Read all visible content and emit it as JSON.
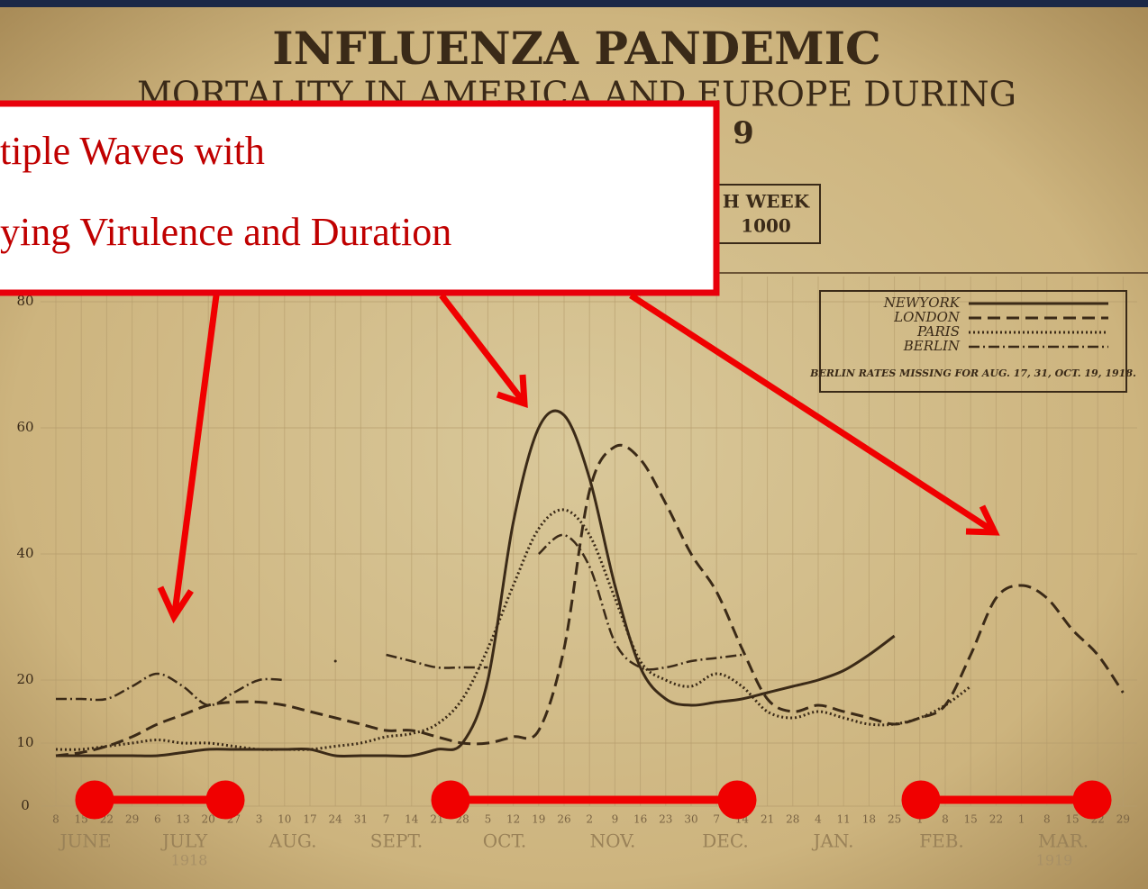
{
  "chart_data": {
    "type": "line",
    "title": "INFLUENZA   PANDEMIC",
    "subtitle": "MORTALITY IN AMERICA AND EUROPE DURING",
    "title_fragment": "9",
    "box_text": [
      "H WEEK",
      "1000"
    ],
    "categories": [
      "8",
      "15",
      "22",
      "29",
      "6",
      "13",
      "20",
      "27",
      "3",
      "10",
      "17",
      "24",
      "31",
      "7",
      "14",
      "21",
      "28",
      "5",
      "12",
      "19",
      "26",
      "2",
      "9",
      "16",
      "23",
      "30",
      "7",
      "14",
      "21",
      "28",
      "4",
      "11",
      "18",
      "25",
      "1",
      "8",
      "15",
      "22",
      "1",
      "8",
      "15",
      "22",
      "29"
    ],
    "month_labels": [
      "JUNE",
      "JULY",
      "AUG.",
      "SEPT.",
      "OCT.",
      "NOV.",
      "DEC.",
      "JAN.",
      "FEB.",
      "MAR."
    ],
    "year_labels": [
      "1918",
      "1919"
    ],
    "ylim": [
      0,
      84
    ],
    "yticks": [
      0,
      10,
      20,
      40,
      60,
      80
    ],
    "grid": true,
    "legend": "upper right",
    "legend_note": "BERLIN RATES MISSING FOR AUG. 17, 31, OCT. 19, 1918.",
    "series": [
      {
        "name": "NEWYORK",
        "color": "#3b2a17",
        "style": "solid",
        "values": [
          8,
          8,
          8,
          8,
          8,
          8.5,
          9,
          9,
          9,
          9,
          9,
          8,
          8,
          8,
          8,
          9,
          10,
          20,
          45,
          60,
          62,
          52,
          35,
          22,
          17,
          16,
          16.5,
          17,
          18,
          19,
          20,
          21.5,
          24,
          27,
          null,
          null,
          null,
          null,
          null,
          null,
          null,
          null,
          null
        ]
      },
      {
        "name": "LONDON",
        "color": "#3b2a17",
        "style": "dashed",
        "values": [
          8,
          8.5,
          9.5,
          11,
          13,
          14.5,
          16,
          16.5,
          16.5,
          16,
          15,
          14,
          13,
          12,
          12,
          11,
          10,
          10,
          11,
          12,
          25,
          50,
          57,
          55,
          48,
          40,
          34,
          25,
          17,
          15,
          16,
          15,
          14,
          13,
          14,
          16,
          24,
          33,
          35,
          33,
          28,
          24,
          18
        ]
      },
      {
        "name": "PARIS",
        "color": "#3b2a17",
        "style": "dotted",
        "values": [
          9,
          9,
          9.5,
          10,
          10.5,
          10,
          10,
          9.5,
          9,
          9,
          9,
          9.5,
          10,
          11,
          11.5,
          13,
          17,
          25,
          35,
          44,
          47,
          43,
          33,
          23,
          20,
          19,
          21,
          19,
          15,
          14,
          15,
          14,
          13,
          13,
          14,
          16,
          19,
          null,
          null,
          null,
          null,
          null,
          null
        ]
      },
      {
        "name": "BERLIN",
        "color": "#3b2a17",
        "style": "dashdot",
        "values": [
          17,
          17,
          17,
          19,
          21,
          19,
          16,
          18,
          20,
          20,
          null,
          23,
          null,
          24,
          23,
          22,
          22,
          22,
          null,
          40,
          43,
          38,
          26,
          22,
          22,
          23,
          23.5,
          24,
          null,
          null,
          null,
          null,
          null,
          null,
          null,
          null,
          null,
          null,
          null,
          null,
          null,
          null,
          null
        ]
      }
    ]
  },
  "callout": {
    "lines": [
      "tiple Waves with",
      "ying Virulence and Duration"
    ]
  }
}
